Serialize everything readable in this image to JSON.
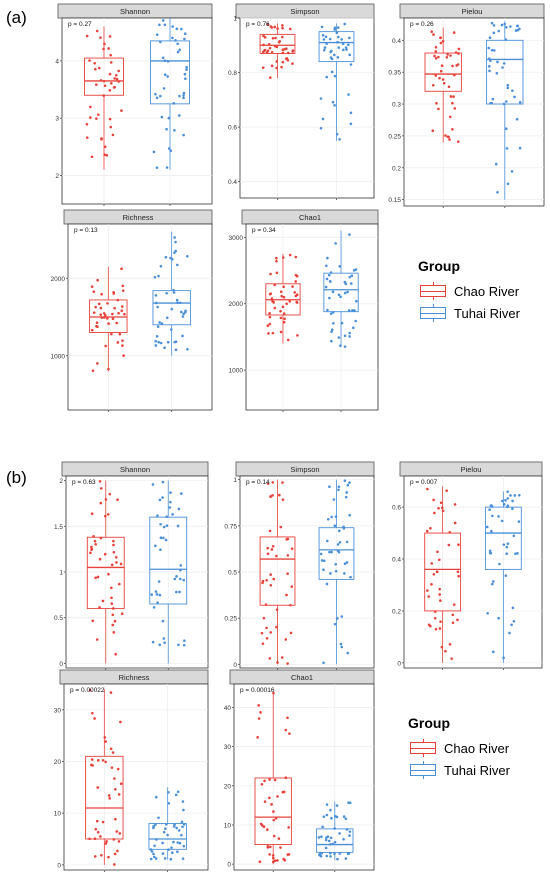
{
  "figure_labels": [
    "(a)",
    "(b)"
  ],
  "legend": {
    "title": "Group",
    "entries": [
      {
        "label": "Chao River",
        "color": "#e8413a"
      },
      {
        "label": "Tuhai River",
        "color": "#4a90d9"
      }
    ]
  },
  "chart_data": [
    {
      "type": "box",
      "group": "(a)",
      "title": "Shannon",
      "p_text": "p = 0.27",
      "ylim": [
        1.5,
        4.75
      ],
      "yticks": [
        2,
        3,
        4
      ],
      "series": [
        {
          "name": "Chao River",
          "min": 2.1,
          "q1": 3.4,
          "median": 3.65,
          "q3": 4.05,
          "max": 4.6
        },
        {
          "name": "Tuhai River",
          "min": 2.1,
          "q1": 3.25,
          "median": 4.0,
          "q3": 4.35,
          "max": 4.75
        }
      ]
    },
    {
      "type": "box",
      "group": "(a)",
      "title": "Simpson",
      "p_text": "p = 0.76",
      "ylim": [
        0.34,
        1.0
      ],
      "yticks": [
        0.4,
        0.6,
        0.8,
        1.0
      ],
      "series": [
        {
          "name": "Chao River",
          "min": 0.78,
          "q1": 0.87,
          "median": 0.9,
          "q3": 0.94,
          "max": 0.98
        },
        {
          "name": "Tuhai River",
          "min": 0.55,
          "q1": 0.84,
          "median": 0.91,
          "q3": 0.95,
          "max": 0.98
        }
      ]
    },
    {
      "type": "box",
      "group": "(a)",
      "title": "Pielou",
      "p_text": "p = 0.26",
      "ylim": [
        0.14,
        0.435
      ],
      "yticks": [
        0.15,
        0.2,
        0.25,
        0.3,
        0.35,
        0.4
      ],
      "series": [
        {
          "name": "Chao River",
          "min": 0.24,
          "q1": 0.32,
          "median": 0.347,
          "q3": 0.38,
          "max": 0.42
        },
        {
          "name": "Tuhai River",
          "min": 0.15,
          "q1": 0.3,
          "median": 0.37,
          "q3": 0.4,
          "max": 0.43
        }
      ]
    },
    {
      "type": "box",
      "group": "(a)",
      "title": "Richness",
      "p_text": "p = 0.13",
      "ylim": [
        300,
        2700
      ],
      "yticks": [
        1000,
        2000
      ],
      "series": [
        {
          "name": "Chao River",
          "min": 800,
          "q1": 1300,
          "median": 1500,
          "q3": 1720,
          "max": 2150
        },
        {
          "name": "Tuhai River",
          "min": 1000,
          "q1": 1400,
          "median": 1680,
          "q3": 1840,
          "max": 2600
        }
      ]
    },
    {
      "type": "box",
      "group": "(a)",
      "title": "Chao1",
      "p_text": "p = 0.34",
      "ylim": [
        400,
        3200
      ],
      "yticks": [
        1000,
        2000,
        3000
      ],
      "series": [
        {
          "name": "Chao River",
          "min": 1400,
          "q1": 1830,
          "median": 2060,
          "q3": 2300,
          "max": 2750
        },
        {
          "name": "Tuhai River",
          "min": 1350,
          "q1": 1880,
          "median": 2210,
          "q3": 2460,
          "max": 3100
        }
      ]
    },
    {
      "type": "box",
      "group": "(b)",
      "title": "Shannon",
      "p_text": "p = 0.63",
      "ylim": [
        -0.05,
        2.05
      ],
      "yticks": [
        0.0,
        0.5,
        1.0,
        1.5,
        2.0
      ],
      "series": [
        {
          "name": "Chao River",
          "min": 0.0,
          "q1": 0.6,
          "median": 1.05,
          "q3": 1.38,
          "max": 2.0
        },
        {
          "name": "Tuhai River",
          "min": 0.0,
          "q1": 0.65,
          "median": 1.03,
          "q3": 1.6,
          "max": 2.0
        }
      ]
    },
    {
      "type": "box",
      "group": "(b)",
      "title": "Simpson",
      "p_text": "p = 0.14",
      "ylim": [
        -0.02,
        1.02
      ],
      "yticks": [
        0.0,
        0.25,
        0.5,
        0.75,
        1.0
      ],
      "series": [
        {
          "name": "Chao River",
          "min": 0.0,
          "q1": 0.32,
          "median": 0.57,
          "q3": 0.69,
          "max": 1.0
        },
        {
          "name": "Tuhai River",
          "min": 0.0,
          "q1": 0.46,
          "median": 0.62,
          "q3": 0.74,
          "max": 1.0
        }
      ]
    },
    {
      "type": "box",
      "group": "(b)",
      "title": "Pielou",
      "p_text": "p = 0.007",
      "ylim": [
        -0.02,
        0.72
      ],
      "yticks": [
        0.0,
        0.2,
        0.4,
        0.6
      ],
      "series": [
        {
          "name": "Chao River",
          "min": 0.0,
          "q1": 0.2,
          "median": 0.36,
          "q3": 0.5,
          "max": 0.68
        },
        {
          "name": "Tuhai River",
          "min": 0.0,
          "q1": 0.36,
          "median": 0.5,
          "q3": 0.6,
          "max": 0.66
        }
      ]
    },
    {
      "type": "box",
      "group": "(b)",
      "title": "Richness",
      "p_text": "p = 0.00022",
      "ylim": [
        -1,
        35
      ],
      "yticks": [
        0,
        10,
        20,
        30
      ],
      "series": [
        {
          "name": "Chao River",
          "min": 0,
          "q1": 5,
          "median": 11,
          "q3": 21,
          "max": 34
        },
        {
          "name": "Tuhai River",
          "min": 1,
          "q1": 3,
          "median": 5,
          "q3": 8,
          "max": 15
        }
      ]
    },
    {
      "type": "box",
      "group": "(b)",
      "title": "Chao1",
      "p_text": "p = 0.00016",
      "ylim": [
        -1.5,
        46
      ],
      "yticks": [
        0,
        10,
        20,
        30,
        40
      ],
      "series": [
        {
          "name": "Chao River",
          "min": 0,
          "q1": 5,
          "median": 12,
          "q3": 22,
          "max": 44
        },
        {
          "name": "Tuhai River",
          "min": 1,
          "q1": 3,
          "median": 5,
          "q3": 9,
          "max": 16
        }
      ]
    }
  ]
}
